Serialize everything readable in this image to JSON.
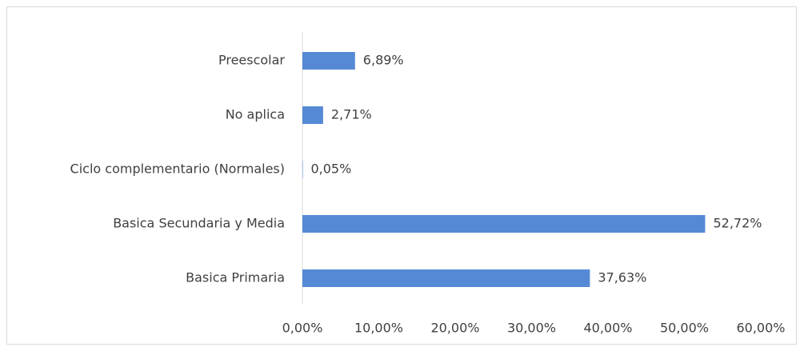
{
  "chart_data": {
    "type": "barh",
    "categories": [
      "Preescolar",
      "No aplica",
      "Ciclo complementario (Normales)",
      "Basica Secundaria y Media",
      "Basica Primaria"
    ],
    "values": [
      6.89,
      2.71,
      0.05,
      52.72,
      37.63
    ],
    "value_labels": [
      "6,89%",
      "2,71%",
      "0,05%",
      "52,72%",
      "37,63%"
    ],
    "color": "#5589d5",
    "xlim": [
      0,
      60
    ],
    "xticks": [
      {
        "value": 0,
        "label": "0,00%"
      },
      {
        "value": 10,
        "label": "10,00%"
      },
      {
        "value": 20,
        "label": "20,00%"
      },
      {
        "value": 30,
        "label": "30,00%"
      },
      {
        "value": 40,
        "label": "40,00%"
      },
      {
        "value": 50,
        "label": "50,00%"
      },
      {
        "value": 60,
        "label": "60,00%"
      }
    ],
    "grid": false
  }
}
